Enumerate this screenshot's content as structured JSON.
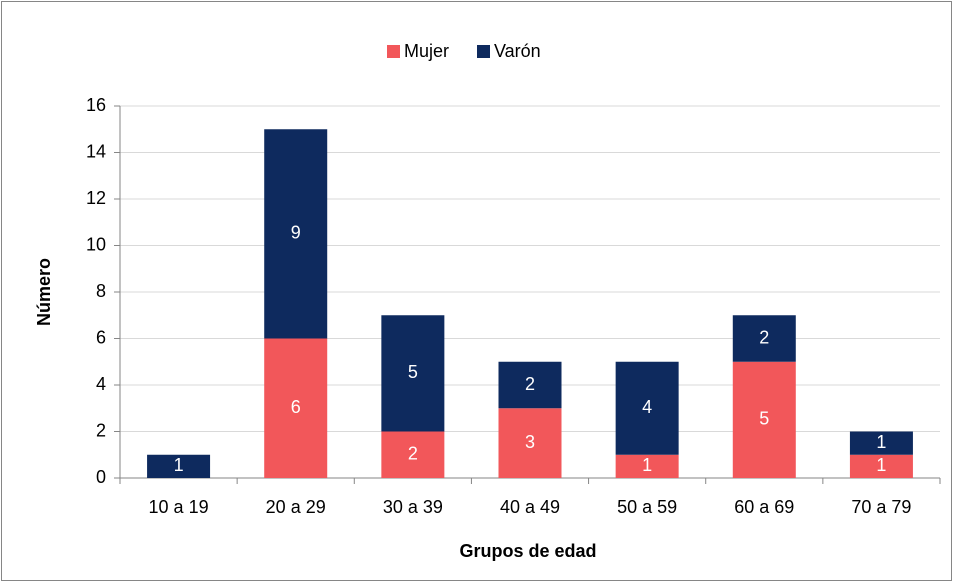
{
  "chart_data": {
    "type": "stacked_bar",
    "x_label": "Grupos de edad",
    "y_label": "Número",
    "categories": [
      "10 a 19",
      "20 a 29",
      "30 a 39",
      "40 a 49",
      "50 a 59",
      "60 a 69",
      "70 a 79"
    ],
    "series": [
      {
        "name": "Mujer",
        "color": "#f2575a",
        "values": [
          0,
          6,
          2,
          3,
          1,
          5,
          1
        ]
      },
      {
        "name": "Varón",
        "color": "#0e2a5e",
        "values": [
          1,
          9,
          5,
          2,
          4,
          2,
          1
        ]
      }
    ],
    "ylim": [
      0,
      16
    ],
    "yticks": [
      0,
      2,
      4,
      6,
      8,
      10,
      12,
      14,
      16
    ],
    "grid": true,
    "legend": "top"
  }
}
